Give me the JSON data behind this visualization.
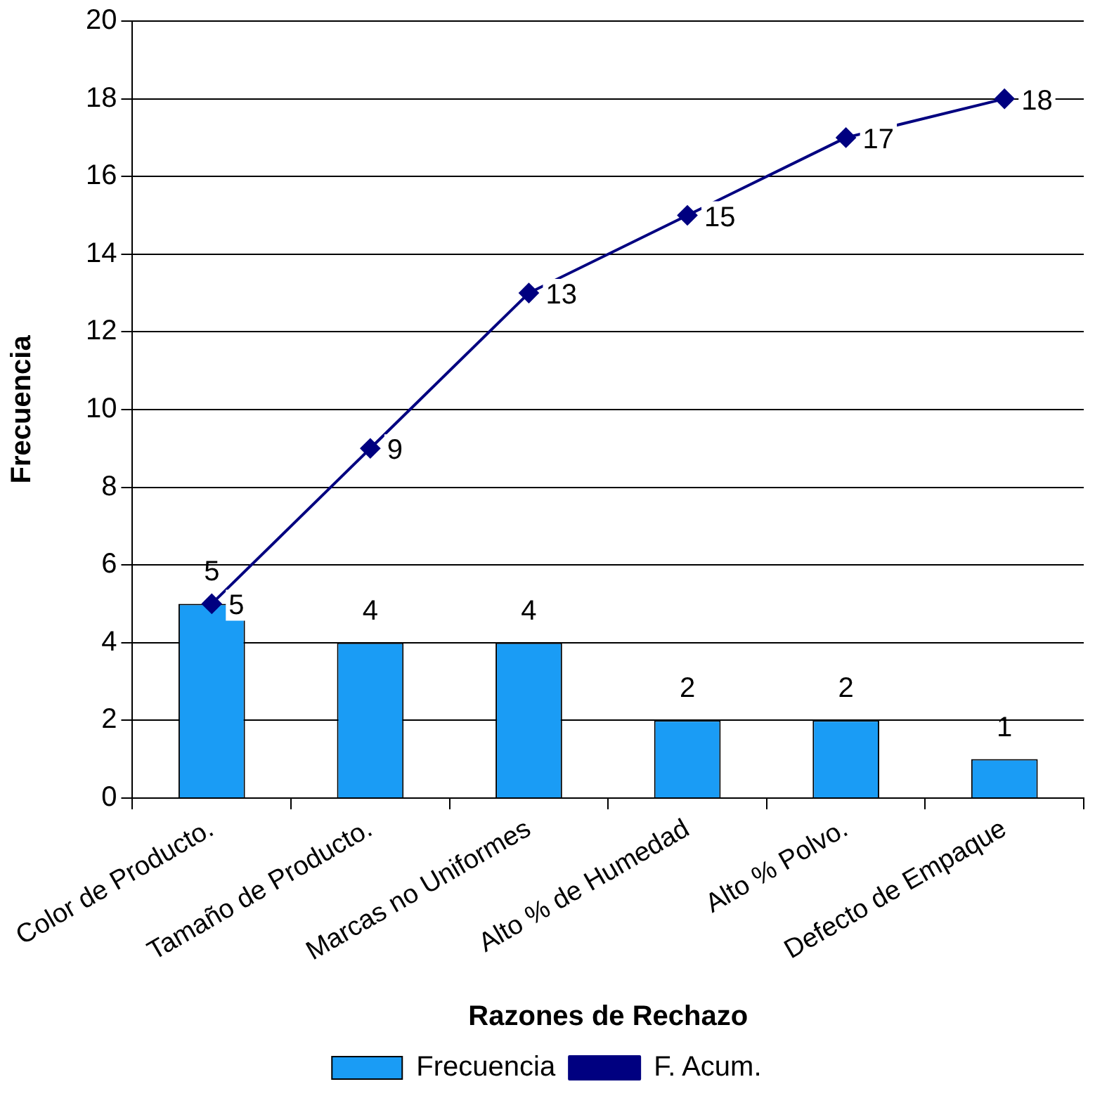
{
  "chart_data": {
    "type": "bar",
    "xlabel": "Razones de Rechazo",
    "ylabel": "Frecuencia",
    "categories": [
      "Color de Producto.",
      "Tamaño de Producto.",
      "Marcas no Uniformes",
      "Alto % de Humedad",
      "Alto % Polvo.",
      "Defecto de Empaque"
    ],
    "series": [
      {
        "name": "Frecuencia",
        "color": "#1a9cf5",
        "values": [
          5,
          4,
          4,
          2,
          2,
          1
        ]
      },
      {
        "name": "F. Acum.",
        "type": "line",
        "color": "#000080",
        "values": [
          5,
          9,
          13,
          15,
          17,
          18
        ],
        "marker": "diamond"
      }
    ],
    "ylim": [
      0,
      20
    ],
    "yticks": [
      0,
      2,
      4,
      6,
      8,
      10,
      12,
      14,
      16,
      18,
      20
    ],
    "grid": "y",
    "legend": "bottom",
    "data_labels": true
  }
}
